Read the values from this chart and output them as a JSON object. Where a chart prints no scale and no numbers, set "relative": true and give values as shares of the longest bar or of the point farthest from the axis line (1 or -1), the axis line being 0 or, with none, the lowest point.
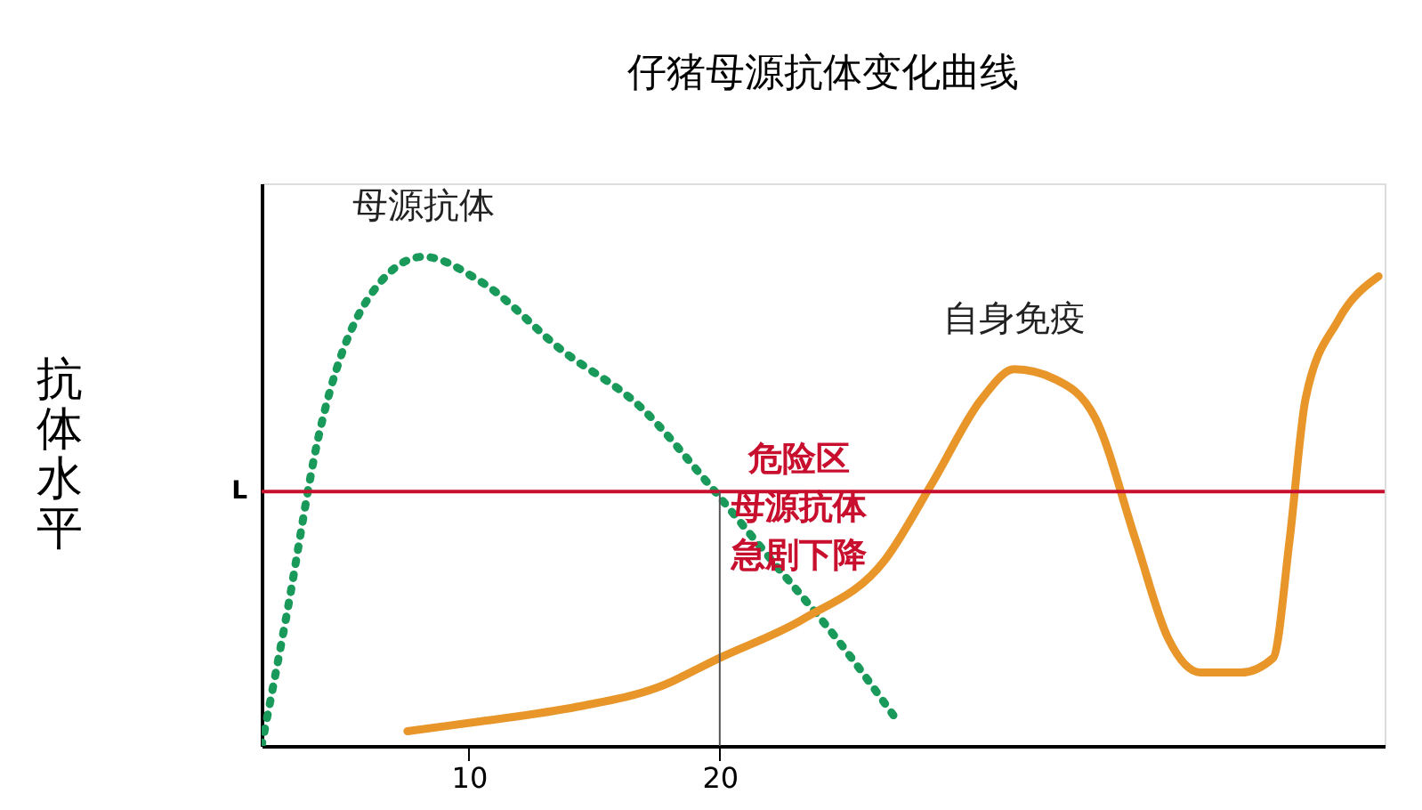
{
  "chart_data": {
    "type": "line",
    "title": "仔猪母源抗体变化曲线",
    "ylabel": "抗体水平",
    "relative": true,
    "grid": false,
    "xlim": [
      1.74,
      46.5
    ],
    "xticks": [
      10,
      20
    ],
    "series": [
      {
        "name": "母源抗体",
        "color": "#1a9a5a",
        "line_style": "dotted",
        "x": [
          1.74,
          2.71,
          4.0,
          5.93,
          8.19,
          10.45,
          13.68,
          16.9,
          19.48,
          22.06,
          24.65,
          27.1
        ],
        "values": [
          0,
          0.26,
          0.63,
          0.91,
          1.0,
          0.95,
          0.81,
          0.69,
          0.54,
          0.38,
          0.22,
          0.05
        ]
      },
      {
        "name": "自身免疫",
        "color": "#e8962a",
        "line_style": "solid",
        "x": [
          7.55,
          10.45,
          14.32,
          17.55,
          20,
          23.35,
          26.58,
          28.5,
          30.45,
          31.74,
          33.35,
          34.97,
          36.58,
          37.87,
          39.16,
          40.77,
          42.06,
          42.71,
          43.35,
          44.65,
          46.26
        ],
        "values": [
          0.03,
          0.05,
          0.08,
          0.12,
          0.18,
          0.26,
          0.38,
          0.54,
          0.71,
          0.77,
          0.75,
          0.67,
          0.42,
          0.22,
          0.15,
          0.15,
          0.18,
          0.42,
          0.71,
          0.87,
          0.96
        ]
      }
    ],
    "ref_lines": [
      {
        "axis": "y",
        "value": 0.52,
        "label": "L",
        "color": "#c8102e"
      },
      {
        "axis": "x",
        "value": 20,
        "color": "#555555"
      }
    ],
    "annotations": [
      "危险区",
      "母源抗体",
      "急剧下降"
    ]
  }
}
